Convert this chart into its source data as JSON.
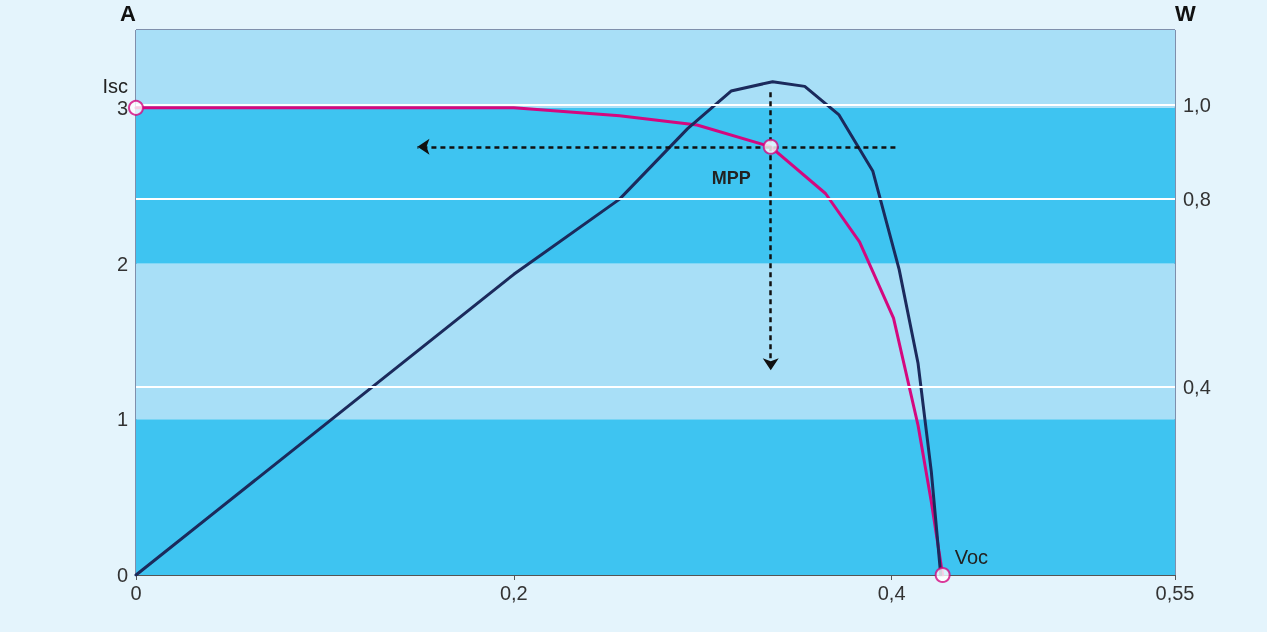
{
  "chart_data": {
    "type": "line",
    "ylabel": "A",
    "y2label": "W",
    "x": [
      0,
      0.2,
      0.256,
      0.297,
      0.336,
      0.365,
      0.383,
      0.401,
      0.414,
      0.421,
      0.427
    ],
    "series": [
      {
        "color": "#d4087f",
        "values": [
          3.0,
          3.0,
          2.95,
          2.89,
          2.75,
          2.45,
          2.14,
          1.65,
          0.96,
          0.47,
          0
        ]
      },
      {
        "color": "#1b2a5c",
        "axis": "y2",
        "x": [
          0,
          0.2,
          0.256,
          0.292,
          0.315,
          0.337,
          0.354,
          0.372,
          0.39,
          0.404,
          0.414,
          0.421,
          0.426
        ],
        "values": [
          0,
          0.64,
          0.8,
          0.95,
          1.03,
          1.05,
          1.04,
          0.98,
          0.86,
          0.65,
          0.45,
          0.22,
          0
        ]
      },
      {
        "type": "scatter",
        "color": "#d4087f",
        "marker": "circle",
        "x": [
          0,
          0.336,
          0.427
        ],
        "values": [
          3.0,
          2.75,
          0
        ]
      }
    ],
    "xlim": [
      0,
      0.55
    ],
    "xticks": [
      0,
      {
        "value": 0.2,
        "label": "0,2"
      },
      {
        "value": 0.4,
        "label": "0,4"
      },
      {
        "value": 0.55,
        "label": "0,55"
      }
    ],
    "ylim": [
      0,
      3.5
    ],
    "yticks": [
      0,
      1,
      2,
      3
    ],
    "y2lim": [
      0,
      1.16
    ],
    "y2ticks": [
      {
        "value": 0.4,
        "label": "0,4"
      },
      {
        "value": 0.8,
        "label": "0,8"
      },
      {
        "value": 1.0,
        "label": "1,0"
      }
    ],
    "grid": true,
    "marker": "none",
    "bands": [
      {
        "axis": "y",
        "from": 0,
        "to": 1,
        "color": "#3ec4f1"
      },
      {
        "axis": "y",
        "from": 1,
        "to": 2,
        "color": "#a8dff7"
      },
      {
        "axis": "y",
        "from": 2,
        "to": 3,
        "color": "#3ec4f1"
      },
      {
        "axis": "y",
        "from": 3,
        "to": 3.5,
        "color": "#a8dff7"
      }
    ],
    "annotations": [
      {
        "text": "Isc",
        "x": 0,
        "y": 3.0
      },
      {
        "text": "MPP",
        "x": 0.336,
        "y": 2.75
      },
      {
        "text": "Voc",
        "x": 0.427,
        "y": 0
      }
    ]
  }
}
